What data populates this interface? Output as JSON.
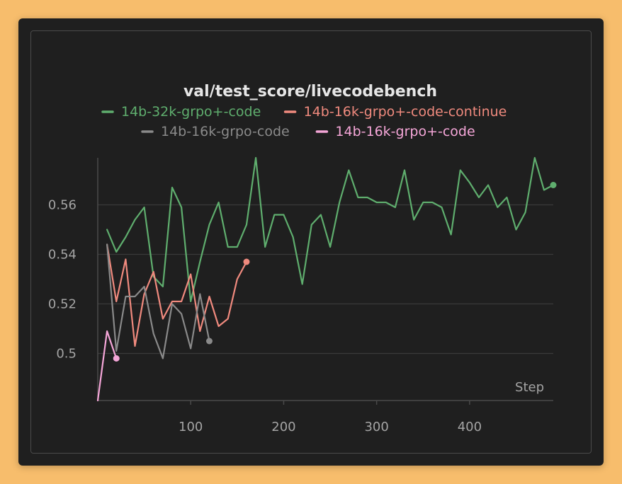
{
  "chart_data": {
    "type": "line",
    "title": "val/test_score/livecodebench",
    "xlabel": "Step",
    "ylabel": "",
    "xlim": [
      0,
      490
    ],
    "ylim": [
      0.481,
      0.579
    ],
    "x_ticks": [
      100,
      200,
      300,
      400
    ],
    "y_ticks": [
      0.5,
      0.52,
      0.54,
      0.56
    ],
    "x_tick_labels": [
      "100",
      "200",
      "300",
      "400"
    ],
    "y_tick_labels": [
      "0.5",
      "0.52",
      "0.54",
      "0.56"
    ],
    "grid": true,
    "legend_position": "top",
    "series": [
      {
        "name": "14b-32k-grpo+-code",
        "color": "#5fae6e",
        "end_marker": true,
        "x": [
          10,
          20,
          30,
          40,
          50,
          60,
          70,
          80,
          90,
          100,
          110,
          120,
          130,
          140,
          150,
          160,
          170,
          180,
          190,
          200,
          210,
          220,
          230,
          240,
          250,
          260,
          270,
          280,
          290,
          300,
          310,
          320,
          330,
          340,
          350,
          360,
          370,
          380,
          390,
          400,
          410,
          420,
          430,
          440,
          450,
          460,
          470,
          480,
          490
        ],
        "y": [
          0.55,
          0.541,
          0.547,
          0.554,
          0.559,
          0.531,
          0.527,
          0.567,
          0.559,
          0.521,
          0.537,
          0.552,
          0.561,
          0.543,
          0.543,
          0.552,
          0.579,
          0.543,
          0.556,
          0.556,
          0.547,
          0.528,
          0.552,
          0.556,
          0.543,
          0.561,
          0.574,
          0.563,
          0.563,
          0.561,
          0.561,
          0.559,
          0.574,
          0.554,
          0.561,
          0.561,
          0.559,
          0.548,
          0.574,
          0.569,
          0.563,
          0.568,
          0.559,
          0.563,
          0.55,
          0.557,
          0.579,
          0.566,
          0.568
        ]
      },
      {
        "name": "14b-16k-grpo+-code-continue",
        "color": "#f08a7e",
        "end_marker": true,
        "x": [
          10,
          20,
          30,
          40,
          50,
          60,
          70,
          80,
          90,
          100,
          110,
          120,
          130,
          140,
          150,
          160
        ],
        "y": [
          0.544,
          0.521,
          0.538,
          0.503,
          0.524,
          0.533,
          0.514,
          0.521,
          0.521,
          0.532,
          0.509,
          0.523,
          0.511,
          0.514,
          0.53,
          0.537
        ]
      },
      {
        "name": "14b-16k-grpo-code",
        "color": "#8a8a8a",
        "end_marker": true,
        "x": [
          10,
          20,
          30,
          40,
          50,
          60,
          70,
          80,
          90,
          100,
          110,
          120
        ],
        "y": [
          0.544,
          0.501,
          0.523,
          0.523,
          0.527,
          0.508,
          0.498,
          0.52,
          0.516,
          0.502,
          0.524,
          0.505
        ]
      },
      {
        "name": "14b-16k-grpo+-code",
        "color": "#f5a6d8",
        "end_marker": true,
        "x": [
          0,
          10,
          20
        ],
        "y": [
          0.481,
          0.509,
          0.498
        ]
      }
    ]
  }
}
